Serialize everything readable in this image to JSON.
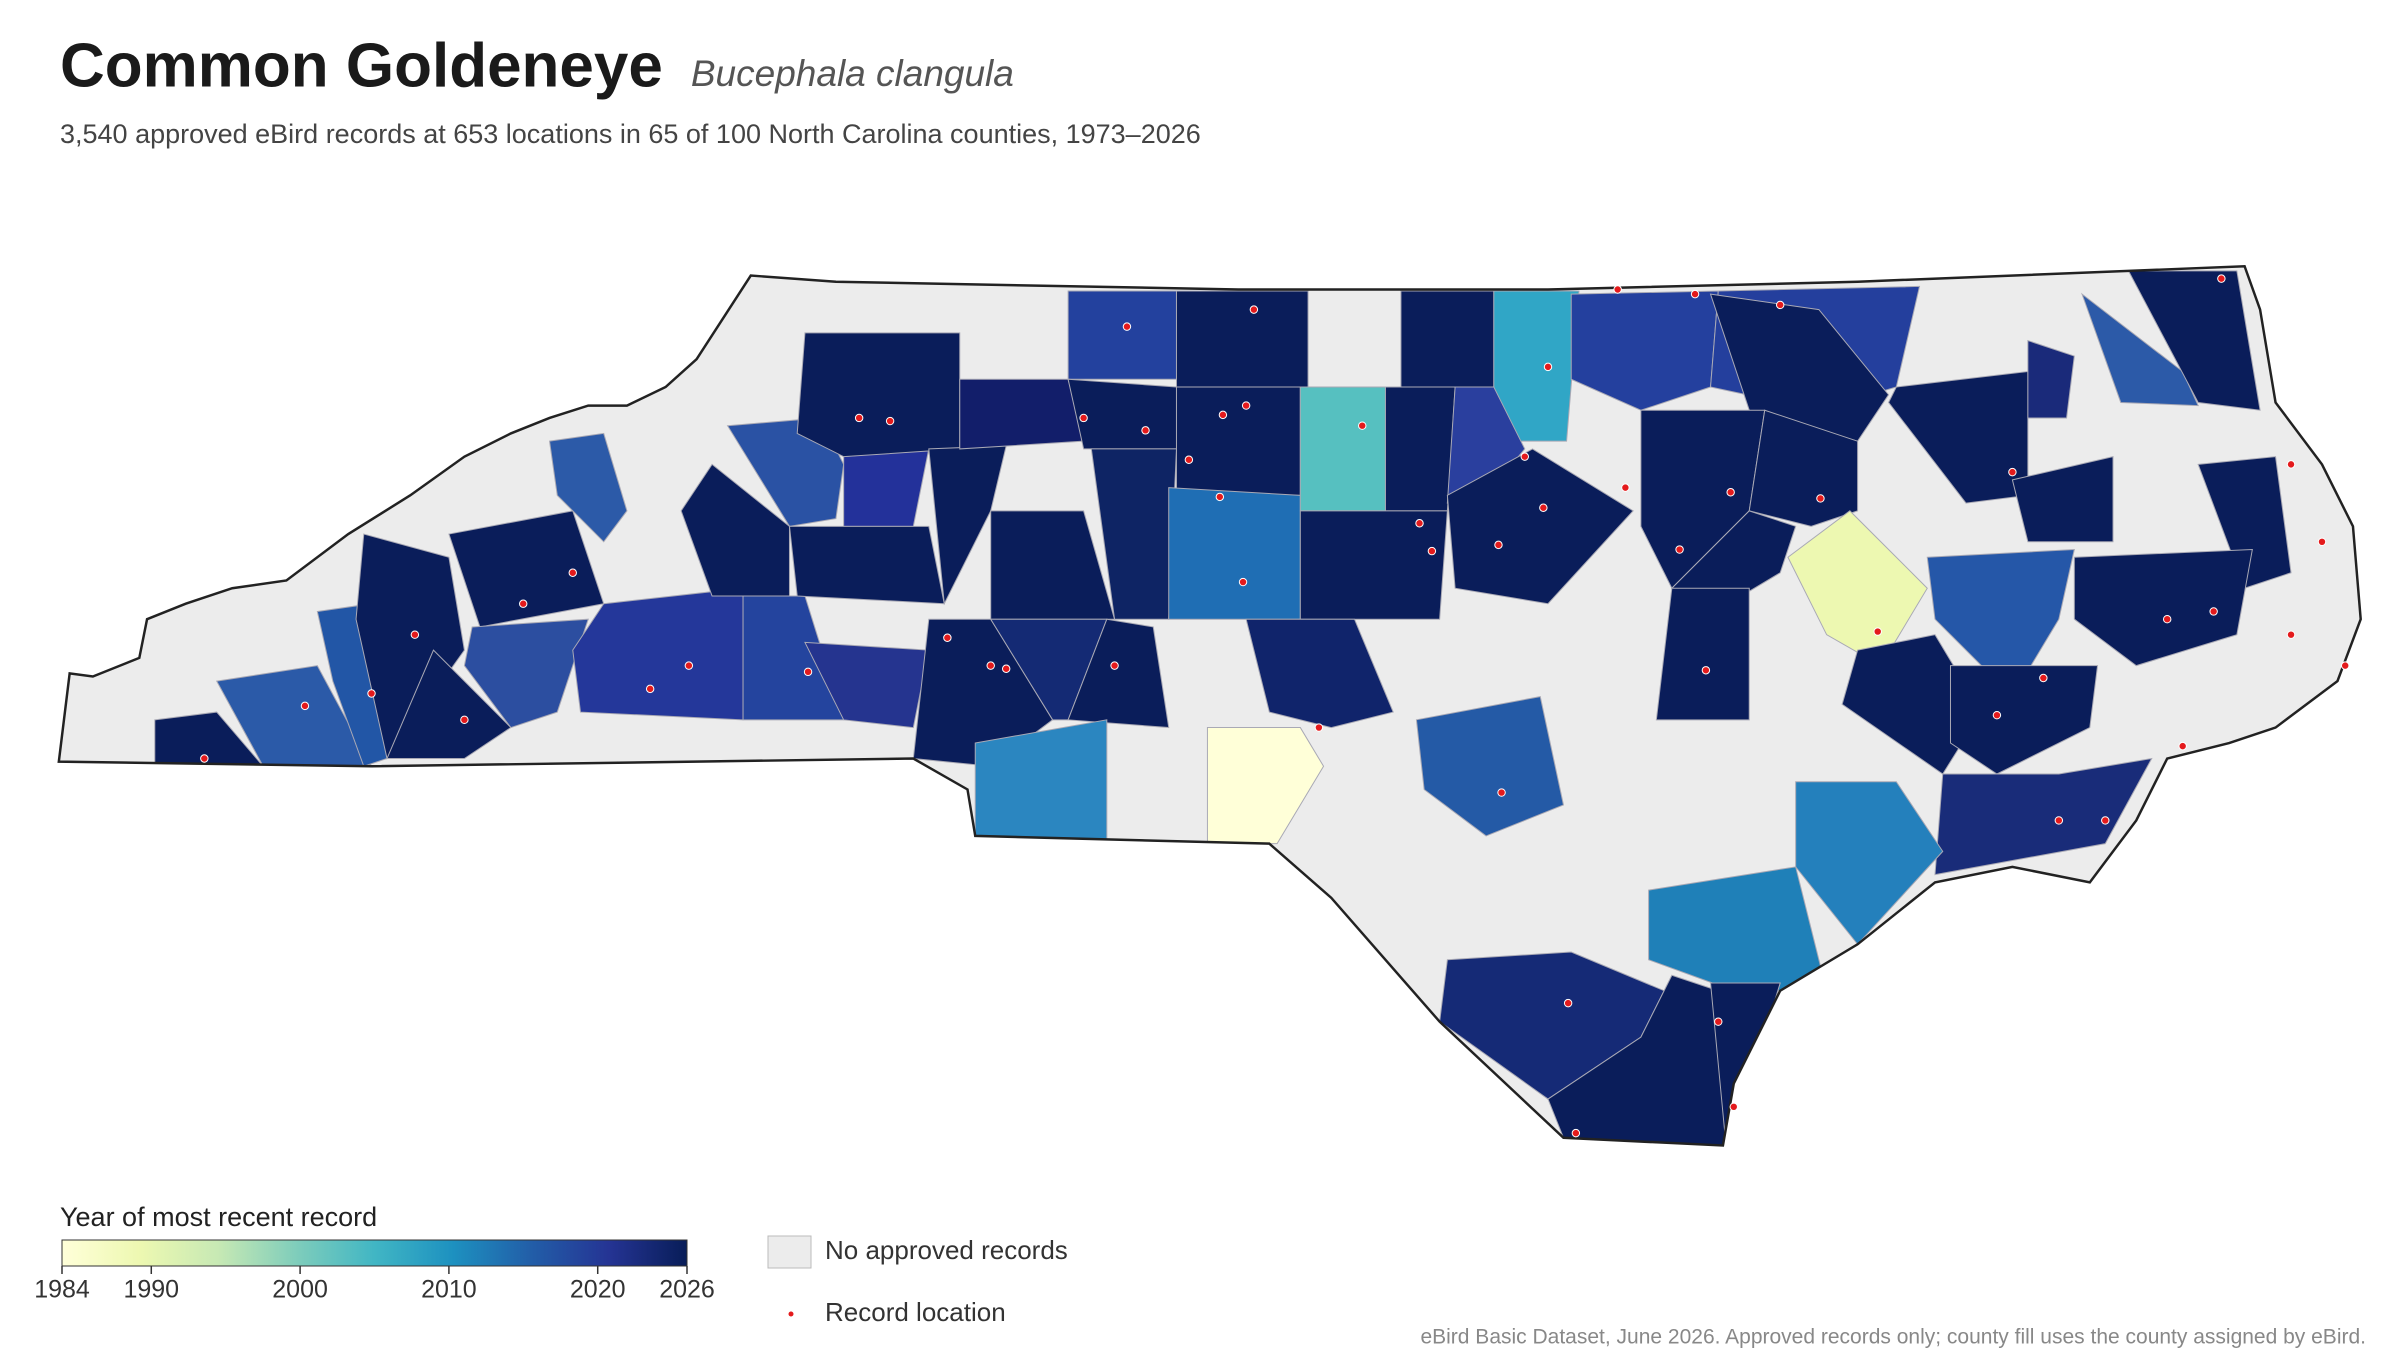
{
  "header": {
    "title": "Common Goldeneye",
    "scientific_name": "Bucephala clangula",
    "subtitle": "3,540 approved eBird records at 653 locations in 65 of 100 North Carolina counties, 1973–2026"
  },
  "legend": {
    "title": "Year of most recent record",
    "range": [
      1984,
      2026
    ],
    "ticks": [
      1984,
      1990,
      2000,
      2010,
      2020,
      2026
    ],
    "no_records": "No approved records",
    "record_location": "Record location"
  },
  "footer": {
    "source": "eBird Basic Dataset, June 2026. Approved records only; county fill uses the county assigned by eBird."
  }
}
